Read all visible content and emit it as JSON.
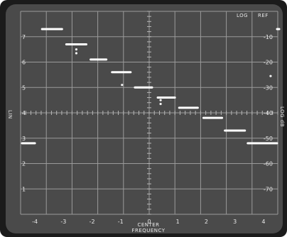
{
  "header": {
    "log_label": "LOG",
    "ref_label": "REF"
  },
  "left_axis": {
    "title": "LIN",
    "ticks": [
      "7",
      "6",
      "5",
      "4",
      "3",
      "2",
      "1"
    ]
  },
  "right_axis": {
    "title": "LOG dB",
    "ticks": [
      "-10",
      "-20",
      "-30",
      "-40",
      "-50",
      "-60",
      "-70"
    ]
  },
  "bottom_axis": {
    "center_label": "CENTER",
    "title": "FREQUENCY",
    "ticks": [
      "-4",
      "-3",
      "-2",
      "-1",
      "0",
      "1",
      "2",
      "3",
      "4"
    ]
  },
  "chart_data": {
    "type": "line",
    "xlabel": "FREQUENCY",
    "x_center_label": "CENTER",
    "ylabel_left": "LIN",
    "ylabel_right": "LOG dB",
    "xlim": [
      -4.5,
      4.5
    ],
    "ylim_left": [
      0,
      8
    ],
    "ylim_right": [
      -80,
      0
    ],
    "grid": true,
    "series": [
      {
        "segments": [
          {
            "x_start": -4.45,
            "x_end": -4.0,
            "y": 2.8
          },
          {
            "x_start": -3.75,
            "x_end": -3.05,
            "y": 7.3
          },
          {
            "x_start": -2.9,
            "x_end": -2.2,
            "y": 6.7
          },
          {
            "x_start": -2.05,
            "x_end": -1.5,
            "y": 6.1
          },
          {
            "x_start": -1.3,
            "x_end": -0.65,
            "y": 5.6
          },
          {
            "x_start": -0.5,
            "x_end": 0.1,
            "y": 5.0
          },
          {
            "x_start": 0.3,
            "x_end": 0.9,
            "y": 4.6
          },
          {
            "x_start": 1.05,
            "x_end": 1.7,
            "y": 4.2
          },
          {
            "x_start": 1.9,
            "x_end": 2.55,
            "y": 3.8
          },
          {
            "x_start": 2.65,
            "x_end": 3.35,
            "y": 3.3
          },
          {
            "x_start": 3.45,
            "x_end": 4.7,
            "y": 2.8
          },
          {
            "x_start": 4.55,
            "x_end": 4.95,
            "y": 7.3
          }
        ]
      }
    ],
    "markers": [
      {
        "x": -2.55,
        "y": 6.5
      },
      {
        "x": -2.55,
        "y": 6.35
      },
      {
        "x": -0.95,
        "y": 5.1
      },
      {
        "x": 0.4,
        "y": 4.5
      },
      {
        "x": 0.4,
        "y": 4.35
      },
      {
        "x": 4.25,
        "y": 5.45
      }
    ]
  }
}
